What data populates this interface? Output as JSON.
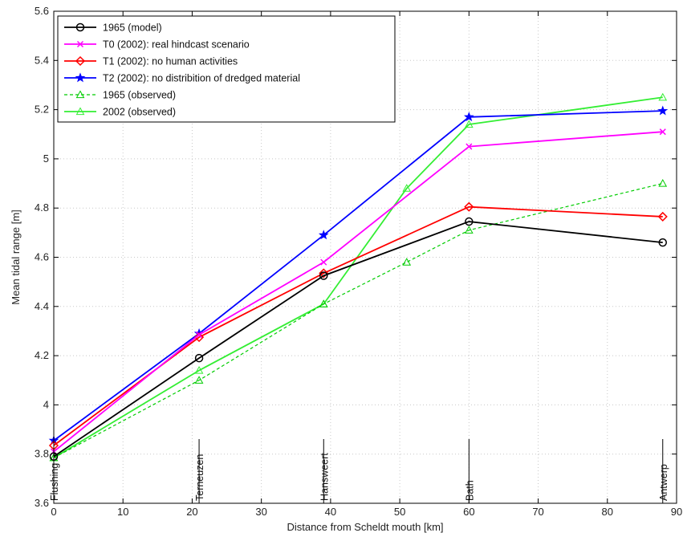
{
  "chart_data": {
    "type": "line",
    "xlabel": "Distance from Scheldt mouth [km]",
    "ylabel": "Mean tidal range [m]",
    "xlim": [
      0,
      90
    ],
    "ylim": [
      3.6,
      5.6
    ],
    "xticks": [
      0,
      10,
      20,
      30,
      40,
      50,
      60,
      70,
      80,
      90
    ],
    "yticks": [
      3.6,
      3.8,
      4,
      4.2,
      4.4,
      4.6,
      4.8,
      5,
      5.2,
      5.4,
      5.6
    ],
    "ytick_labels": [
      "3.6",
      "3.8",
      "4",
      "4.2",
      "4.4",
      "4.6",
      "4.8",
      "5",
      "5.2",
      "5.4",
      "5.6"
    ],
    "grid": true,
    "legend_position": "top-left",
    "stations": [
      {
        "name": "Flushing",
        "x": 0
      },
      {
        "name": "Terneuzen",
        "x": 21
      },
      {
        "name": "Hansweert",
        "x": 39
      },
      {
        "name": "Bath",
        "x": 60
      },
      {
        "name": "Antwerp",
        "x": 88
      }
    ],
    "series": [
      {
        "name": "1965 (model)",
        "color": "#000000",
        "marker": "circle",
        "dash": "solid",
        "x": [
          0,
          21,
          39,
          60,
          88
        ],
        "y": [
          3.79,
          4.19,
          4.525,
          4.745,
          4.66
        ]
      },
      {
        "name": "T0 (2002): real hindcast scenario",
        "color": "#ff00ff",
        "marker": "x",
        "dash": "solid",
        "x": [
          0,
          21,
          39,
          60,
          88
        ],
        "y": [
          3.81,
          4.285,
          4.58,
          5.05,
          5.11
        ]
      },
      {
        "name": "T1 (2002): no human activities",
        "color": "#ff0000",
        "marker": "diamond",
        "dash": "solid",
        "x": [
          0,
          21,
          39,
          60,
          88
        ],
        "y": [
          3.835,
          4.275,
          4.535,
          4.805,
          4.765
        ]
      },
      {
        "name": "T2 (2002): no distribition of dredged material",
        "color": "#0000ff",
        "marker": "star",
        "dash": "solid",
        "x": [
          0,
          21,
          39,
          60,
          88
        ],
        "y": [
          3.855,
          4.29,
          4.69,
          5.17,
          5.195
        ]
      },
      {
        "name": "1965 (observed)",
        "color": "#00cc00",
        "marker": "triangle",
        "dash": "dashed",
        "x": [
          0,
          21,
          39,
          51,
          60,
          88
        ],
        "y": [
          3.785,
          4.1,
          4.41,
          4.58,
          4.71,
          4.9
        ]
      },
      {
        "name": "2002 (observed)",
        "color": "#33ee33",
        "marker": "triangle",
        "dash": "solid",
        "x": [
          0,
          21,
          39,
          51,
          60,
          88
        ],
        "y": [
          3.785,
          4.14,
          4.41,
          4.88,
          5.14,
          5.25
        ]
      }
    ]
  }
}
